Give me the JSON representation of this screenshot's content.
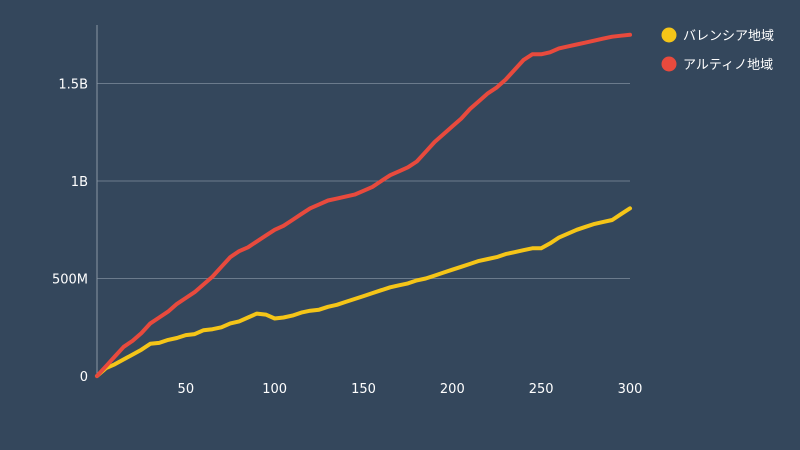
{
  "chart_data": {
    "type": "line",
    "title": "",
    "xlabel": "",
    "ylabel": "",
    "xlim": [
      0,
      300
    ],
    "ylim": [
      0,
      1800000000
    ],
    "x_ticks": [
      {
        "value": 50,
        "label": "50"
      },
      {
        "value": 100,
        "label": "100"
      },
      {
        "value": 150,
        "label": "150"
      },
      {
        "value": 200,
        "label": "200"
      },
      {
        "value": 250,
        "label": "250"
      },
      {
        "value": 300,
        "label": "300"
      }
    ],
    "y_ticks": [
      {
        "value": 0,
        "label": "0"
      },
      {
        "value": 500000000,
        "label": "500M"
      },
      {
        "value": 1000000000,
        "label": "1B"
      },
      {
        "value": 1500000000,
        "label": "1.5B"
      }
    ],
    "grid": true,
    "legend_position": "top-right",
    "x": [
      0,
      5,
      10,
      15,
      20,
      25,
      30,
      35,
      40,
      45,
      50,
      55,
      60,
      65,
      70,
      75,
      80,
      85,
      90,
      95,
      100,
      105,
      110,
      115,
      120,
      125,
      130,
      135,
      140,
      145,
      150,
      155,
      160,
      165,
      170,
      175,
      180,
      185,
      190,
      195,
      200,
      205,
      210,
      215,
      220,
      225,
      230,
      235,
      240,
      245,
      250,
      255,
      260,
      265,
      270,
      275,
      280,
      285,
      290,
      295,
      300
    ],
    "series": [
      {
        "name": "バレンシア地域",
        "color": "#f5c518",
        "values": [
          0,
          40000000,
          60000000,
          85000000,
          110000000,
          135000000,
          165000000,
          170000000,
          185000000,
          195000000,
          210000000,
          215000000,
          235000000,
          240000000,
          250000000,
          270000000,
          280000000,
          300000000,
          320000000,
          315000000,
          295000000,
          300000000,
          310000000,
          325000000,
          335000000,
          340000000,
          355000000,
          365000000,
          380000000,
          395000000,
          410000000,
          425000000,
          440000000,
          455000000,
          465000000,
          475000000,
          490000000,
          500000000,
          515000000,
          530000000,
          545000000,
          560000000,
          575000000,
          590000000,
          600000000,
          610000000,
          625000000,
          635000000,
          645000000,
          655000000,
          655000000,
          680000000,
          710000000,
          730000000,
          750000000,
          765000000,
          780000000,
          790000000,
          800000000,
          830000000,
          860000000
        ]
      },
      {
        "name": "アルティノ地域",
        "color": "#e84a3d",
        "values": [
          0,
          50000000,
          100000000,
          150000000,
          180000000,
          220000000,
          270000000,
          300000000,
          330000000,
          370000000,
          400000000,
          430000000,
          470000000,
          510000000,
          560000000,
          610000000,
          640000000,
          660000000,
          690000000,
          720000000,
          750000000,
          770000000,
          800000000,
          830000000,
          860000000,
          880000000,
          900000000,
          910000000,
          920000000,
          930000000,
          950000000,
          970000000,
          1000000000,
          1030000000,
          1050000000,
          1070000000,
          1100000000,
          1150000000,
          1200000000,
          1240000000,
          1280000000,
          1320000000,
          1370000000,
          1410000000,
          1450000000,
          1480000000,
          1520000000,
          1570000000,
          1620000000,
          1650000000,
          1650000000,
          1660000000,
          1680000000,
          1690000000,
          1700000000,
          1710000000,
          1720000000,
          1730000000,
          1740000000,
          1745000000,
          1750000000
        ]
      }
    ]
  }
}
